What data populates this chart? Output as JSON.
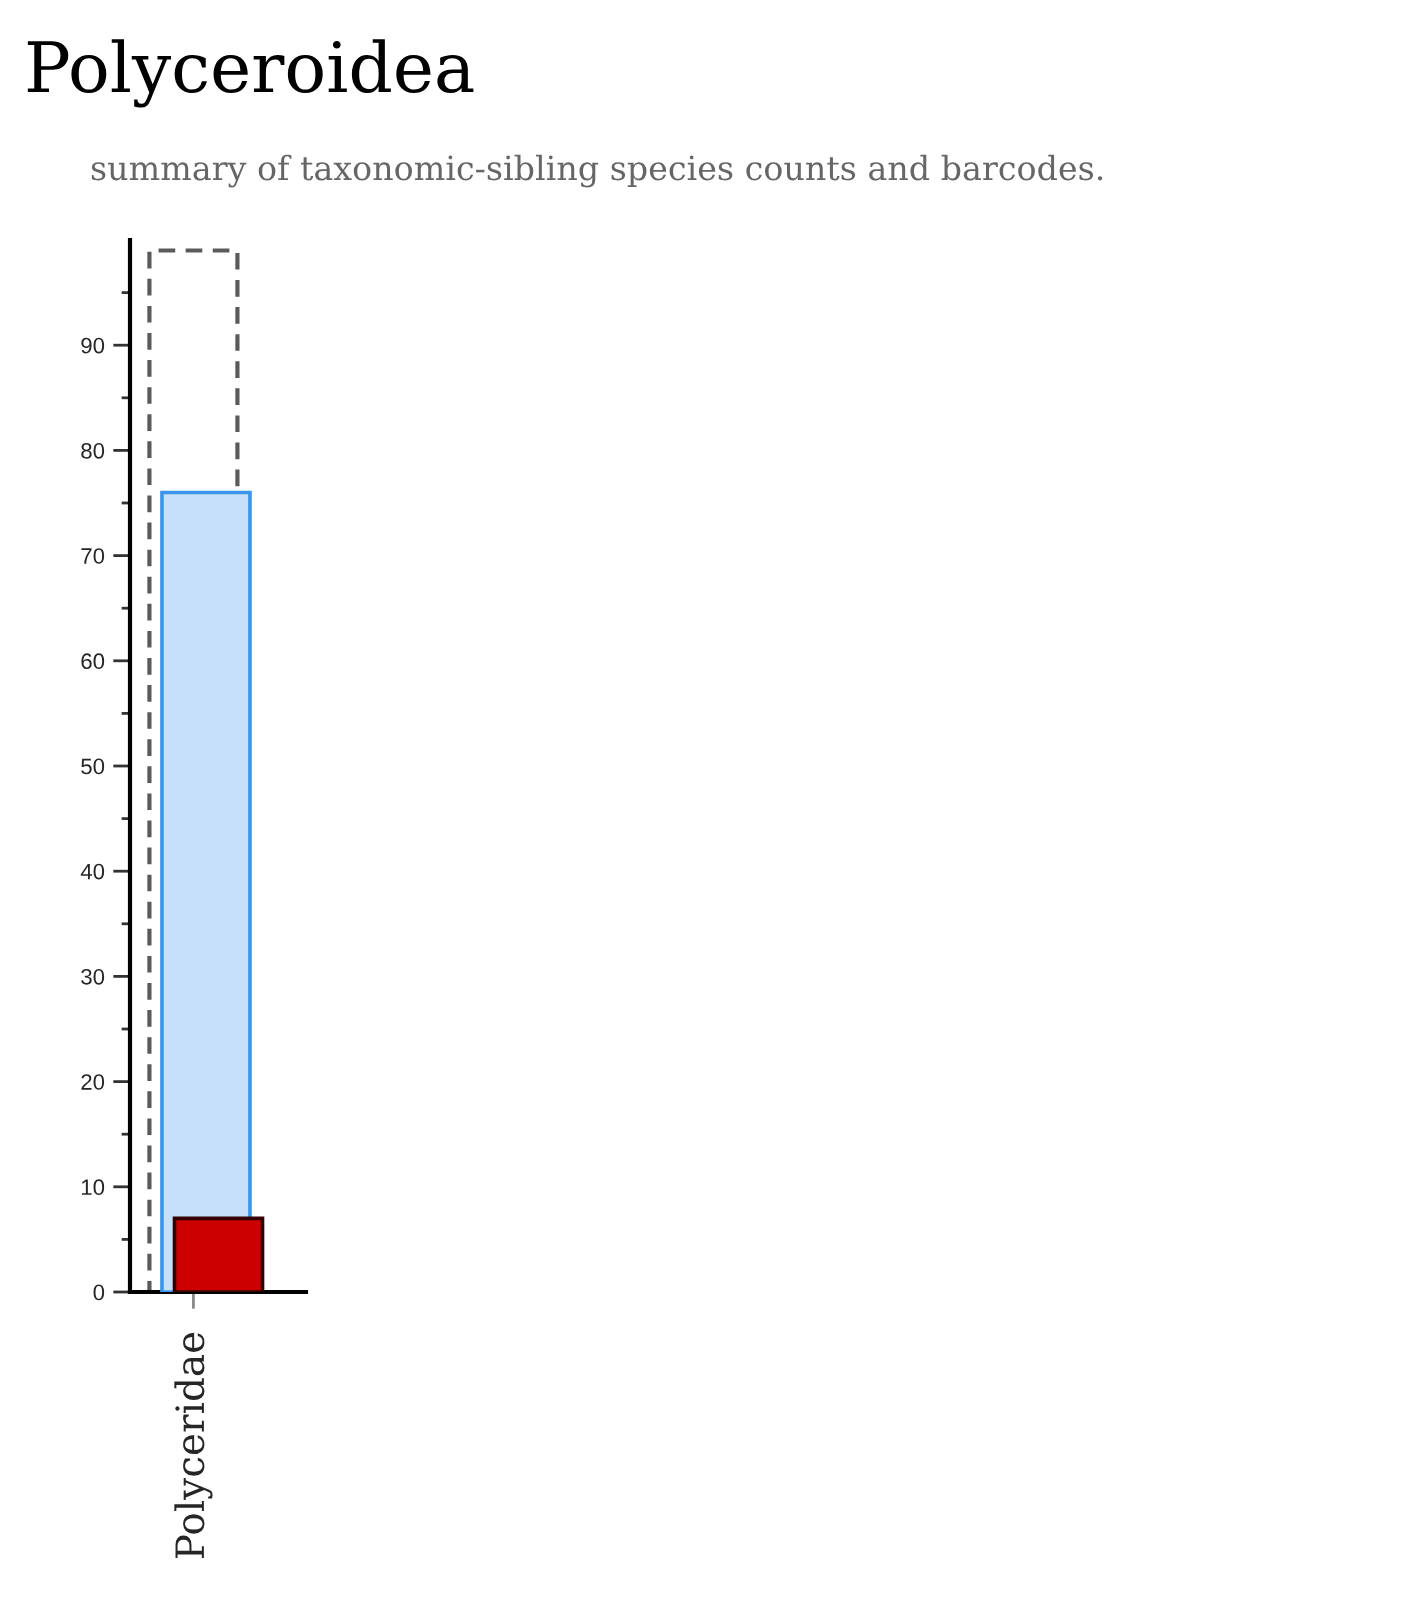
{
  "chart_data": {
    "type": "bar",
    "title": "Polyceroidea",
    "subtitle": "summary of taxonomic-sibling species counts and barcodes.",
    "categories": [
      "Polyceridae"
    ],
    "series": [
      {
        "color": "#5a5a5a",
        "values": [
          99
        ],
        "line_style": "dashed"
      },
      {
        "color": "#c6e0f9",
        "values": [
          76
        ]
      },
      {
        "color": "#cc0000",
        "values": [
          7
        ]
      }
    ],
    "ylim": [
      0,
      100
    ],
    "yticks": [
      0,
      {
        "value": 5,
        "label": null
      },
      10,
      {
        "value": 15,
        "label": null
      },
      20,
      {
        "value": 25,
        "label": null
      },
      30,
      {
        "value": 35,
        "label": null
      },
      40,
      {
        "value": 45,
        "label": null
      },
      50,
      {
        "value": 55,
        "label": null
      },
      60,
      {
        "value": 65,
        "label": null
      },
      70,
      {
        "value": 75,
        "label": null
      },
      80,
      {
        "value": 85,
        "label": null
      },
      90,
      {
        "value": 95,
        "label": null
      }
    ]
  }
}
